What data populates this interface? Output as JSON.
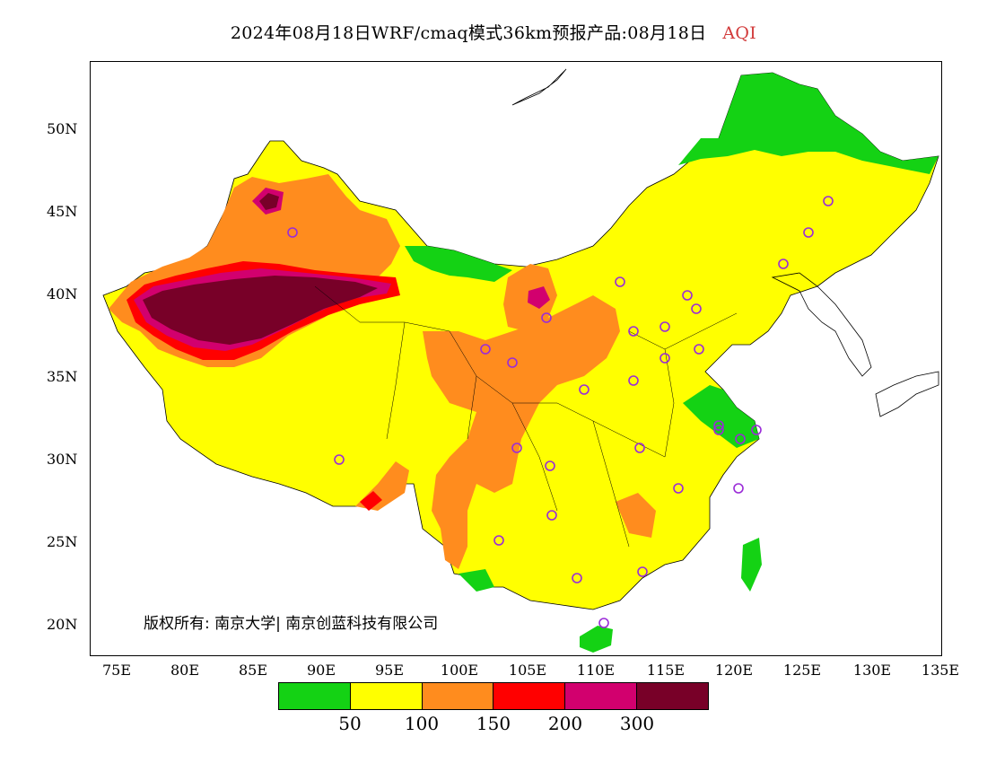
{
  "header": {
    "title": "2024年08月18日WRF/cmaq模式36km预报产品:08月18日",
    "metric": "AQI"
  },
  "map": {
    "lat_ticks": [
      "50N",
      "45N",
      "40N",
      "35N",
      "30N",
      "25N",
      "20N"
    ],
    "lon_ticks": [
      "75E",
      "80E",
      "85E",
      "90E",
      "95E",
      "100E",
      "105E",
      "110E",
      "115E",
      "120E",
      "125E",
      "130E",
      "135E"
    ],
    "copyright": "版权所有: 南京大学| 南京创蓝科技有限公司",
    "colors": {
      "good": "#14d214",
      "moderate": "#ffff00",
      "sensitive": "#ff8c1e",
      "unhealthy": "#ff0000",
      "very_unhealthy": "#d2006e",
      "hazardous": "#780028",
      "station_marker": "#9a2bd8"
    }
  },
  "legend": {
    "swatches": [
      "#14d214",
      "#ffff00",
      "#ff8c1e",
      "#ff0000",
      "#d2006e",
      "#780028"
    ],
    "labels": [
      "50",
      "100",
      "150",
      "200",
      "300"
    ]
  }
}
